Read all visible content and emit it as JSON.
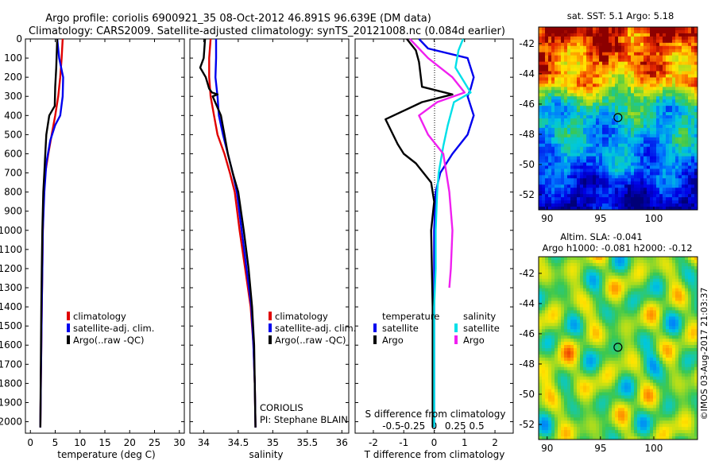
{
  "header": {
    "title_line1": "Argo profile: coriolis 6900921_35 08-Oct-2012 46.891S 96.639E (DM data)",
    "title_line2": "Climatology: CARS2009. Satellite-adjusted climatology: synTS_20121008.nc (0.084d earlier)"
  },
  "colors": {
    "climatology": "#e00000",
    "satellite": "#0000ee",
    "argo": "#000000",
    "sal_satellite": "#00e0e8",
    "sal_argo": "#f020f0"
  },
  "chart_data": [
    {
      "id": "temperature",
      "type": "line",
      "xlabel": "temperature (deg C)",
      "xlim": [
        -1,
        31
      ],
      "xticks": [
        0,
        5,
        10,
        15,
        20,
        25,
        30
      ],
      "ylim": [
        2060,
        0
      ],
      "yticks": [
        0,
        100,
        200,
        300,
        400,
        500,
        600,
        700,
        800,
        900,
        1000,
        1100,
        1200,
        1300,
        1400,
        1500,
        1600,
        1700,
        1800,
        1900,
        2000
      ],
      "legend": {
        "position": "lower-middle",
        "entries": [
          "climatology",
          "satellite-adj. clim.",
          "Argo(..raw -QC)"
        ]
      },
      "series": [
        {
          "name": "climatology",
          "color": "#e00000",
          "x": [
            6.5,
            6.3,
            6.0,
            5.6,
            5.0,
            4.3,
            3.6,
            3.0,
            2.7,
            2.5,
            2.4,
            2.3,
            2.2,
            2.1,
            2.0
          ],
          "y": [
            0,
            100,
            200,
            300,
            400,
            500,
            600,
            700,
            800,
            1000,
            1200,
            1400,
            1600,
            1800,
            2030
          ]
        },
        {
          "name": "satellite-adj. clim.",
          "color": "#0000ee",
          "x": [
            5.4,
            5.8,
            6.6,
            6.5,
            6.0,
            5.0,
            4.0,
            3.2,
            2.8,
            2.5,
            2.4,
            2.3,
            2.2,
            2.1,
            2.0
          ],
          "y": [
            0,
            100,
            200,
            300,
            400,
            450,
            530,
            650,
            800,
            1000,
            1200,
            1400,
            1600,
            1800,
            2030
          ]
        },
        {
          "name": "Argo(..raw -QC)",
          "color": "#000000",
          "x": [
            5.4,
            5.2,
            5.0,
            4.9,
            3.8,
            3.2,
            3.0,
            2.8,
            2.6,
            2.4,
            2.3,
            2.2,
            2.1,
            2.0
          ],
          "y": [
            0,
            150,
            250,
            350,
            400,
            500,
            600,
            700,
            800,
            1000,
            1200,
            1400,
            1700,
            2030
          ]
        }
      ]
    },
    {
      "id": "salinity",
      "type": "line",
      "xlabel": "salinity",
      "xlim": [
        33.8,
        36.1
      ],
      "xticks": [
        34,
        34.5,
        35,
        35.5,
        36
      ],
      "ylim": [
        2060,
        0
      ],
      "legend": {
        "position": "lower-middle",
        "entries": [
          "climatology",
          "satellite-adj. clim.",
          "Argo(..raw -QC)"
        ]
      },
      "annotation": [
        "CORIOLIS",
        "PI: Stephane BLAIN"
      ],
      "series": [
        {
          "name": "climatology",
          "color": "#e00000",
          "x": [
            34.1,
            34.08,
            34.08,
            34.1,
            34.15,
            34.2,
            34.3,
            34.38,
            34.45,
            34.52,
            34.6,
            34.68,
            34.72,
            34.74,
            34.75
          ],
          "y": [
            0,
            100,
            200,
            300,
            400,
            500,
            600,
            700,
            800,
            1000,
            1200,
            1400,
            1600,
            1800,
            2030
          ]
        },
        {
          "name": "satellite-adj. clim.",
          "color": "#0000ee",
          "x": [
            34.18,
            34.18,
            34.17,
            34.2,
            34.22,
            34.28,
            34.35,
            34.42,
            34.48,
            34.55,
            34.62,
            34.69,
            34.72,
            34.74,
            34.75
          ],
          "y": [
            0,
            100,
            200,
            300,
            400,
            500,
            600,
            700,
            800,
            1000,
            1200,
            1400,
            1600,
            1800,
            2030
          ]
        },
        {
          "name": "Argo(..raw -QC)",
          "color": "#000000",
          "x": [
            34.02,
            34.0,
            33.95,
            34.03,
            34.08,
            34.12,
            34.2,
            34.13,
            34.25,
            34.3,
            34.35,
            34.42,
            34.5,
            34.58,
            34.65,
            34.7,
            34.73,
            34.75
          ],
          "y": [
            0,
            100,
            150,
            200,
            260,
            280,
            290,
            300,
            400,
            500,
            600,
            700,
            800,
            1000,
            1200,
            1400,
            1600,
            2030
          ]
        }
      ]
    },
    {
      "id": "difference",
      "type": "line",
      "xlabel": "T difference from climatology",
      "xlabel_top": "S difference from climatology",
      "xlim": [
        -2.6,
        2.6
      ],
      "xticks": [
        -2,
        -1,
        0,
        1,
        2
      ],
      "xticks_top": [
        "-0.5",
        "-0.25",
        "0",
        "0.25",
        "0.5"
      ],
      "ylim": [
        2060,
        0
      ],
      "legend": {
        "headers": [
          "temperature",
          "salinity"
        ],
        "temperature": [
          "satellite",
          "Argo"
        ],
        "salinity": [
          "satellite",
          "Argo"
        ]
      },
      "series": [
        {
          "name": "temperature satellite",
          "color": "#0000ee",
          "x": [
            -0.5,
            -0.2,
            1.1,
            1.3,
            1.2,
            1.1,
            1.3,
            1.1,
            0.6,
            0.2,
            0.05,
            0,
            0,
            0,
            0
          ],
          "y": [
            0,
            50,
            100,
            200,
            260,
            300,
            400,
            500,
            600,
            700,
            800,
            1000,
            1400,
            1700,
            2030
          ]
        },
        {
          "name": "temperature Argo",
          "color": "#000000",
          "x": [
            -0.9,
            -0.6,
            -0.5,
            -0.4,
            0.6,
            -0.4,
            -1.6,
            -1.2,
            -1.0,
            -0.6,
            -0.1,
            0,
            -0.1,
            -0.05,
            -0.05,
            -0.05
          ],
          "y": [
            0,
            60,
            120,
            250,
            290,
            330,
            420,
            550,
            600,
            650,
            750,
            850,
            1000,
            1400,
            1700,
            2030
          ]
        },
        {
          "name": "salinity satellite",
          "color": "#00e0e8",
          "x": [
            0.95,
            0.8,
            0.7,
            1.2,
            0.65,
            0.45,
            0.3,
            0.15,
            0.1,
            0.05,
            0.05,
            0.0,
            0.0,
            0.0
          ],
          "y": [
            0,
            60,
            150,
            280,
            330,
            450,
            560,
            700,
            800,
            1000,
            1200,
            1400,
            1700,
            2030
          ]
        },
        {
          "name": "salinity Argo",
          "color": "#f020f0",
          "x": [
            -0.8,
            -0.2,
            0.6,
            1.0,
            0.1,
            -0.5,
            -0.2,
            0.3,
            0.5,
            0.6,
            0.55,
            0.5
          ],
          "y": [
            0,
            100,
            200,
            280,
            330,
            400,
            500,
            600,
            800,
            1000,
            1200,
            1300
          ]
        }
      ]
    },
    {
      "id": "sst_map",
      "type": "heatmap",
      "title": "sat. SST: 5.1 Argo: 5.18",
      "xticks": [
        90,
        95,
        100
      ],
      "yticks": [
        -42,
        -44,
        -46,
        -48,
        -50,
        -52
      ],
      "xlim": [
        89.2,
        104.1
      ],
      "ylim": [
        -53,
        -40.9
      ],
      "marker": {
        "lon": 96.64,
        "lat": -46.89
      }
    },
    {
      "id": "sla_map",
      "type": "heatmap",
      "title_line1": "Altim. SLA: -0.041",
      "title_line2": "Argo h1000: -0.081 h2000: -0.12",
      "xticks": [
        90,
        95,
        100
      ],
      "yticks": [
        -42,
        -44,
        -46,
        -48,
        -50,
        -52
      ],
      "xlim": [
        89.2,
        104.1
      ],
      "ylim": [
        -53,
        -40.9
      ],
      "marker": {
        "lon": 96.64,
        "lat": -46.89
      }
    }
  ],
  "footer": {
    "stamp": "©IMOS 03-Aug-2017 21:03:37"
  }
}
